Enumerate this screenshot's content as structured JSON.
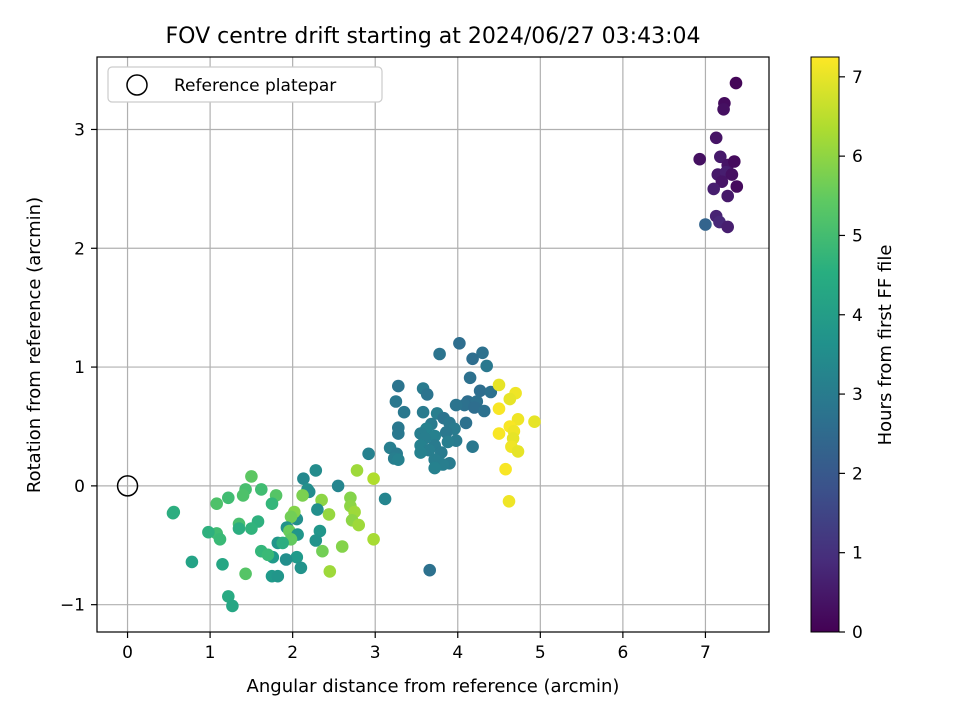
{
  "chart_data": {
    "type": "scatter",
    "title": "FOV centre drift starting at 2024/06/27 03:43:04",
    "xlabel": "Angular distance from reference (arcmin)",
    "ylabel": "Rotation from reference (arcmin)",
    "xlim": [
      -0.37,
      7.77
    ],
    "ylim": [
      -1.23,
      3.61
    ],
    "xticks": [
      "0",
      "1",
      "2",
      "3",
      "4",
      "5",
      "6",
      "7"
    ],
    "yticks": [
      "−1",
      "0",
      "1",
      "2",
      "3"
    ],
    "grid": true,
    "legend": {
      "placement": "top-left",
      "entries": [
        "Reference platepar"
      ]
    },
    "reference_point": {
      "name": "Reference platepar",
      "x": 0,
      "y": 0,
      "marker": "open-circle"
    },
    "colorbar": {
      "label": "Hours from first FF file",
      "range": [
        0,
        7.25
      ],
      "ticks": [
        "0",
        "1",
        "2",
        "3",
        "4",
        "5",
        "6",
        "7"
      ],
      "colormap": "viridis"
    },
    "points": [
      [
        7.37,
        3.39,
        0.1
      ],
      [
        7.23,
        3.22,
        0.2
      ],
      [
        7.22,
        3.17,
        0.3
      ],
      [
        7.13,
        2.93,
        0.4
      ],
      [
        6.93,
        2.75,
        0.3
      ],
      [
        7.18,
        2.77,
        0.5
      ],
      [
        7.27,
        2.7,
        0.4
      ],
      [
        7.35,
        2.73,
        0.2
      ],
      [
        7.15,
        2.62,
        0.5
      ],
      [
        7.25,
        2.64,
        0.6
      ],
      [
        7.32,
        2.62,
        0.3
      ],
      [
        7.2,
        2.56,
        0.4
      ],
      [
        7.38,
        2.52,
        0.2
      ],
      [
        7.1,
        2.5,
        0.6
      ],
      [
        7.27,
        2.44,
        0.5
      ],
      [
        7.13,
        2.27,
        0.7
      ],
      [
        7.17,
        2.22,
        0.8
      ],
      [
        7.27,
        2.18,
        0.6
      ],
      [
        7.0,
        2.2,
        2.3
      ],
      [
        4.02,
        1.2,
        2.6
      ],
      [
        4.3,
        1.12,
        2.7
      ],
      [
        3.78,
        1.11,
        2.8
      ],
      [
        4.18,
        1.07,
        2.6
      ],
      [
        4.35,
        1.01,
        2.9
      ],
      [
        4.15,
        0.91,
        2.7
      ],
      [
        3.28,
        0.84,
        2.8
      ],
      [
        3.58,
        0.82,
        3.0
      ],
      [
        4.27,
        0.8,
        2.6
      ],
      [
        4.4,
        0.79,
        2.7
      ],
      [
        3.63,
        0.77,
        2.8
      ],
      [
        3.25,
        0.71,
        2.9
      ],
      [
        4.12,
        0.71,
        2.6
      ],
      [
        4.08,
        0.68,
        2.7
      ],
      [
        4.23,
        0.71,
        2.7
      ],
      [
        3.98,
        0.68,
        2.8
      ],
      [
        4.2,
        0.66,
        2.6
      ],
      [
        4.32,
        0.63,
        2.7
      ],
      [
        3.35,
        0.62,
        2.9
      ],
      [
        3.58,
        0.62,
        3.0
      ],
      [
        3.75,
        0.61,
        3.1
      ],
      [
        3.83,
        0.57,
        2.8
      ],
      [
        3.9,
        0.53,
        2.9
      ],
      [
        4.1,
        0.53,
        2.7
      ],
      [
        3.68,
        0.52,
        3.0
      ],
      [
        3.28,
        0.49,
        2.9
      ],
      [
        3.62,
        0.48,
        3.2
      ],
      [
        3.96,
        0.48,
        3.0
      ],
      [
        3.86,
        0.45,
        2.9
      ],
      [
        3.55,
        0.44,
        3.1
      ],
      [
        3.72,
        0.42,
        3.2
      ],
      [
        3.28,
        0.44,
        2.9
      ],
      [
        3.6,
        0.4,
        3.1
      ],
      [
        3.98,
        0.38,
        3.0
      ],
      [
        3.88,
        0.37,
        3.1
      ],
      [
        3.55,
        0.34,
        3.2
      ],
      [
        3.72,
        0.34,
        3.0
      ],
      [
        3.18,
        0.32,
        3.1
      ],
      [
        4.18,
        0.33,
        2.9
      ],
      [
        3.65,
        0.3,
        3.1
      ],
      [
        3.8,
        0.28,
        3.0
      ],
      [
        3.55,
        0.28,
        3.2
      ],
      [
        3.26,
        0.27,
        3.0
      ],
      [
        3.23,
        0.23,
        3.1
      ],
      [
        3.28,
        0.22,
        3.2
      ],
      [
        3.72,
        0.22,
        3.1
      ],
      [
        3.9,
        0.19,
        3.0
      ],
      [
        3.82,
        0.18,
        3.1
      ],
      [
        3.72,
        0.15,
        3.2
      ],
      [
        3.66,
        -0.71,
        2.7
      ],
      [
        4.5,
        0.85,
        7.0
      ],
      [
        4.7,
        0.78,
        7.1
      ],
      [
        4.63,
        0.73,
        7.0
      ],
      [
        4.5,
        0.65,
        7.2
      ],
      [
        4.73,
        0.56,
        7.1
      ],
      [
        4.93,
        0.54,
        7.0
      ],
      [
        4.63,
        0.5,
        7.2
      ],
      [
        4.68,
        0.46,
        7.1
      ],
      [
        4.5,
        0.44,
        7.2
      ],
      [
        4.67,
        0.4,
        7.0
      ],
      [
        4.65,
        0.33,
        7.1
      ],
      [
        4.73,
        0.29,
        7.0
      ],
      [
        4.58,
        0.14,
        7.2
      ],
      [
        4.62,
        -0.13,
        7.1
      ],
      [
        2.92,
        0.27,
        3.2
      ],
      [
        3.12,
        -0.11,
        3.3
      ],
      [
        2.55,
        0.0,
        3.3
      ],
      [
        2.98,
        0.06,
        6.4
      ],
      [
        2.78,
        0.13,
        6.2
      ],
      [
        2.28,
        0.13,
        3.5
      ],
      [
        2.13,
        0.06,
        3.4
      ],
      [
        2.18,
        -0.03,
        3.6
      ],
      [
        2.2,
        -0.05,
        3.5
      ],
      [
        2.12,
        -0.08,
        5.8
      ],
      [
        2.35,
        -0.12,
        6.0
      ],
      [
        2.3,
        -0.2,
        3.6
      ],
      [
        2.44,
        -0.24,
        6.1
      ],
      [
        2.7,
        -0.1,
        5.9
      ],
      [
        2.7,
        -0.17,
        6.0
      ],
      [
        2.75,
        -0.22,
        6.2
      ],
      [
        2.72,
        -0.29,
        6.0
      ],
      [
        2.8,
        -0.33,
        6.2
      ],
      [
        2.98,
        -0.45,
        6.3
      ],
      [
        2.6,
        -0.51,
        5.9
      ],
      [
        2.45,
        -0.72,
        6.2
      ],
      [
        2.33,
        -0.38,
        3.8
      ],
      [
        2.28,
        -0.46,
        3.7
      ],
      [
        2.36,
        -0.55,
        5.7
      ],
      [
        2.05,
        -0.28,
        3.6
      ],
      [
        2.02,
        -0.22,
        5.9
      ],
      [
        1.98,
        -0.26,
        5.7
      ],
      [
        1.93,
        -0.35,
        3.7
      ],
      [
        1.96,
        -0.38,
        5.6
      ],
      [
        2.06,
        -0.41,
        3.8
      ],
      [
        1.98,
        -0.45,
        5.5
      ],
      [
        2.05,
        -0.6,
        3.9
      ],
      [
        1.82,
        -0.48,
        3.8
      ],
      [
        1.92,
        -0.62,
        3.6
      ],
      [
        1.76,
        -0.6,
        3.9
      ],
      [
        2.1,
        -0.69,
        3.7
      ],
      [
        1.75,
        -0.76,
        3.9
      ],
      [
        1.82,
        -0.76,
        3.8
      ],
      [
        1.5,
        0.08,
        5.4
      ],
      [
        1.43,
        -0.03,
        5.1
      ],
      [
        1.4,
        -0.08,
        5.2
      ],
      [
        1.62,
        -0.03,
        5.0
      ],
      [
        1.8,
        -0.08,
        5.3
      ],
      [
        1.22,
        -0.1,
        5.0
      ],
      [
        1.08,
        -0.15,
        5.2
      ],
      [
        1.75,
        -0.15,
        4.8
      ],
      [
        1.58,
        -0.3,
        4.6
      ],
      [
        1.35,
        -0.32,
        5.1
      ],
      [
        1.35,
        -0.36,
        4.5
      ],
      [
        1.5,
        -0.36,
        4.7
      ],
      [
        1.08,
        -0.4,
        5.0
      ],
      [
        0.98,
        -0.39,
        4.6
      ],
      [
        1.12,
        -0.45,
        4.9
      ],
      [
        1.62,
        -0.55,
        4.8
      ],
      [
        1.88,
        -0.48,
        4.5
      ],
      [
        1.7,
        -0.58,
        4.9
      ],
      [
        1.15,
        -0.66,
        4.3
      ],
      [
        1.43,
        -0.74,
        5.3
      ],
      [
        0.78,
        -0.64,
        4.2
      ],
      [
        1.22,
        -0.93,
        4.4
      ],
      [
        1.27,
        -1.01,
        4.3
      ],
      [
        0.56,
        -0.22,
        4.6
      ],
      [
        0.55,
        -0.23,
        4.5
      ]
    ]
  }
}
